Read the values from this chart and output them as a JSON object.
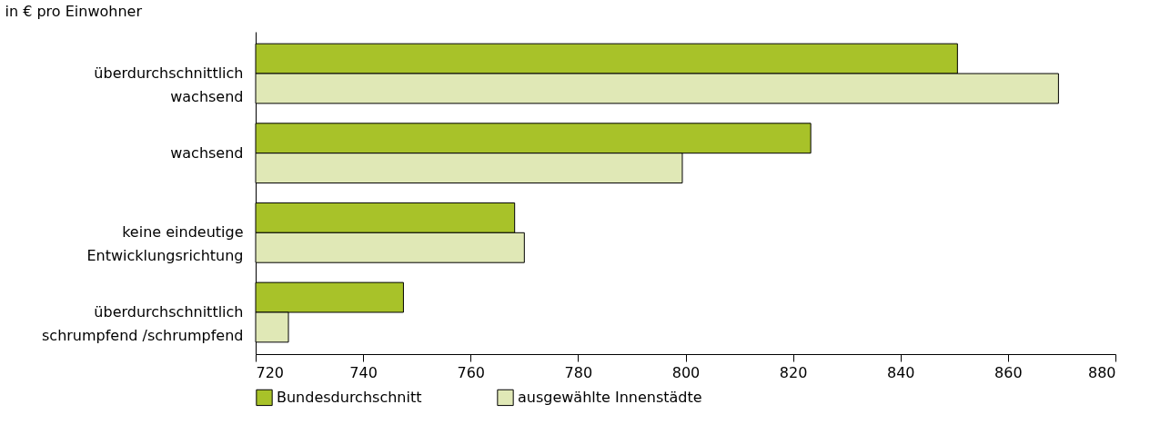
{
  "chart_data": {
    "type": "bar",
    "orientation": "horizontal",
    "xlabel": "in € pro Einwohner",
    "categories": [
      "überdurchschnittlich\nwachsend",
      "wachsend",
      "keine eindeutige\nEntwicklungsrichtung",
      "überdurchschnittlich\nschrumpfend /schrumpfend"
    ],
    "series": [
      {
        "name": "Bundesdurchschnitt",
        "color": "#a8c229",
        "values": [
          850.6,
          823.3,
          768.2,
          747.5
        ]
      },
      {
        "name": "ausgewählte Innenstädte",
        "color": "#e0e8b6",
        "values": [
          869.4,
          799.4,
          770.0,
          726.1
        ]
      }
    ],
    "xlim": [
      720,
      880
    ],
    "xticks": [
      720,
      740,
      760,
      780,
      800,
      820,
      840,
      860,
      880
    ],
    "grid": false,
    "legend": "bottom left"
  }
}
